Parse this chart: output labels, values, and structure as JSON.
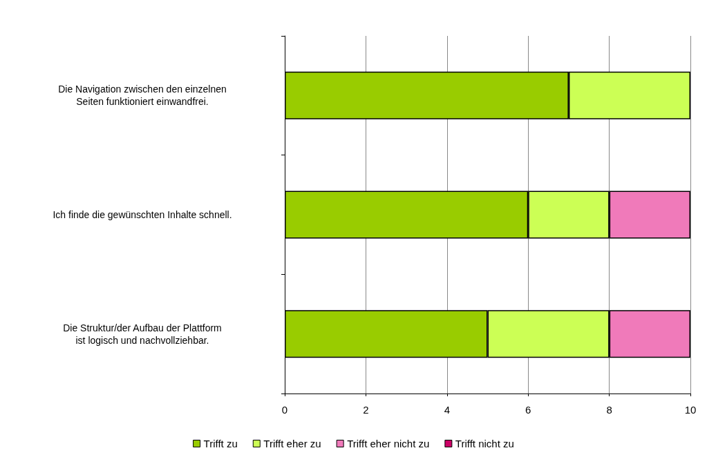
{
  "chart_data": {
    "type": "bar",
    "orientation": "horizontal",
    "stacked": true,
    "categories": [
      "Die Navigation zwischen den einzelnen\nSeiten funktioniert einwandfrei.",
      "Ich finde die gewünschten Inhalte schnell.",
      "Die Struktur/der Aufbau der Plattform\nist logisch und nachvollziehbar."
    ],
    "series": [
      {
        "name": "Trifft zu",
        "color": "#99cc00",
        "values": [
          7,
          6,
          5
        ]
      },
      {
        "name": "Trifft eher zu",
        "color": "#ccff55",
        "values": [
          3,
          2,
          3
        ]
      },
      {
        "name": "Trifft eher nicht zu",
        "color": "#f07aba",
        "values": [
          0,
          2,
          2
        ]
      },
      {
        "name": "Trifft nicht zu",
        "color": "#cc0066",
        "values": [
          0,
          0,
          0
        ]
      }
    ],
    "xlim": [
      0,
      10
    ],
    "xticks": [
      0,
      2,
      4,
      6,
      8,
      10
    ],
    "grid": "x",
    "legend": "bottom"
  }
}
